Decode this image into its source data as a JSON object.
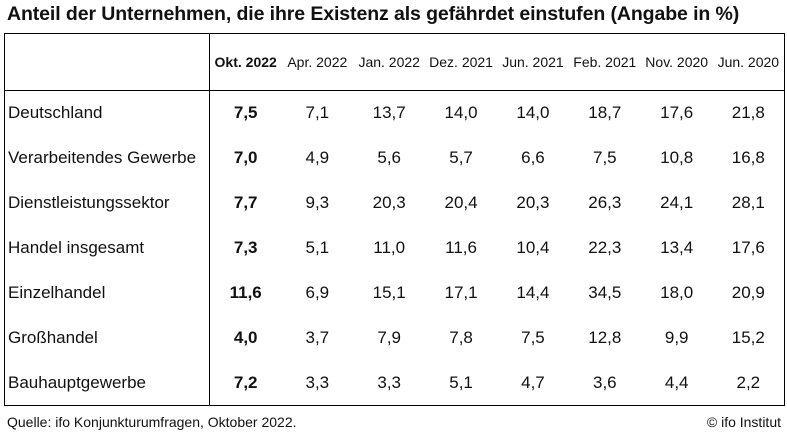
{
  "title": "Anteil der Unternehmen, die ihre Existenz als gefährdet einstufen (Angabe in %)",
  "source": "Quelle: ifo Konjunkturumfragen, Oktober 2022.",
  "copyright": "© ifo Institut",
  "chart_data": {
    "type": "table",
    "columns": [
      "Okt. 2022",
      "Apr. 2022",
      "Jan. 2022",
      "Dez. 2021",
      "Jun. 2021",
      "Feb. 2021",
      "Nov. 2020",
      "Jun. 2020"
    ],
    "highlighted_column": "Okt. 2022",
    "rows": [
      {
        "label": "Deutschland",
        "values": [
          "7,5",
          "7,1",
          "13,7",
          "14,0",
          "14,0",
          "18,7",
          "17,6",
          "21,8"
        ]
      },
      {
        "label": "Verarbeitendes Gewerbe",
        "values": [
          "7,0",
          "4,9",
          "5,6",
          "5,7",
          "6,6",
          "7,5",
          "10,8",
          "16,8"
        ]
      },
      {
        "label": "Dienstleistungssektor",
        "values": [
          "7,7",
          "9,3",
          "20,3",
          "20,4",
          "20,3",
          "26,3",
          "24,1",
          "28,1"
        ]
      },
      {
        "label": "Handel insgesamt",
        "values": [
          "7,3",
          "5,1",
          "11,0",
          "11,6",
          "10,4",
          "22,3",
          "13,4",
          "17,6"
        ]
      },
      {
        "label": "Einzelhandel",
        "values": [
          "11,6",
          "6,9",
          "15,1",
          "17,1",
          "14,4",
          "34,5",
          "18,0",
          "20,9"
        ]
      },
      {
        "label": "Großhandel",
        "values": [
          "4,0",
          "3,7",
          "7,9",
          "7,8",
          "7,5",
          "12,8",
          "9,9",
          "15,2"
        ]
      },
      {
        "label": "Bauhauptgewerbe",
        "values": [
          "7,2",
          "3,3",
          "3,3",
          "5,1",
          "4,7",
          "3,6",
          "4,4",
          "2,2"
        ]
      }
    ]
  }
}
